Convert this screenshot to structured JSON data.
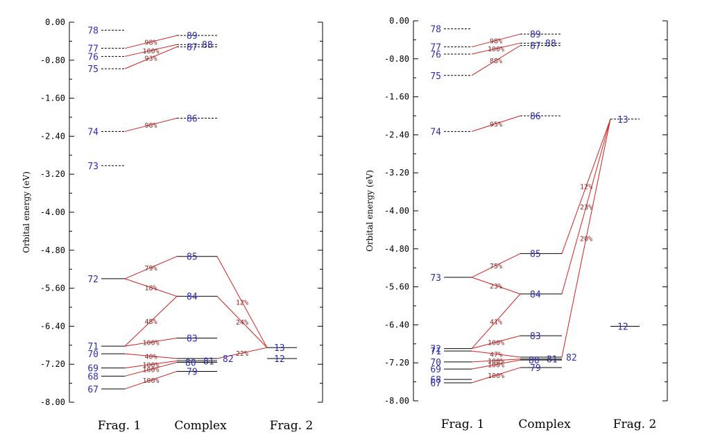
{
  "chart_data": [
    {
      "type": "orbital-correlation-diagram",
      "ylabel": "Orbital energy (eV)",
      "ylim": [
        -8.0,
        0.0
      ],
      "yticks": [
        "0.00",
        "-0.80",
        "-1.60",
        "-2.40",
        "-3.20",
        "-4.00",
        "-4.80",
        "-5.60",
        "-6.40",
        "-7.20",
        "-8.00"
      ],
      "columns": [
        "Frag. 1",
        "Complex",
        "Frag. 2"
      ],
      "levels": {
        "frag1": [
          {
            "label": "78",
            "energy": -0.17,
            "occupied": false
          },
          {
            "label": "77",
            "energy": -0.55,
            "occupied": false
          },
          {
            "label": "76",
            "energy": -0.72,
            "occupied": false
          },
          {
            "label": "75",
            "energy": -0.98,
            "occupied": false
          },
          {
            "label": "74",
            "energy": -2.3,
            "occupied": false
          },
          {
            "label": "73",
            "energy": -3.02,
            "occupied": false
          },
          {
            "label": "72",
            "energy": -5.4,
            "occupied": true
          },
          {
            "label": "71",
            "energy": -6.82,
            "occupied": true
          },
          {
            "label": "70",
            "energy": -6.98,
            "occupied": true
          },
          {
            "label": "69",
            "energy": -7.28,
            "occupied": true
          },
          {
            "label": "68",
            "energy": -7.45,
            "occupied": true
          },
          {
            "label": "67",
            "energy": -7.72,
            "occupied": true
          }
        ],
        "complex": [
          {
            "label": "89",
            "energy": -0.28,
            "occupied": false
          },
          {
            "label": "88",
            "energy": -0.47,
            "occupied": false
          },
          {
            "label": "87",
            "energy": -0.52,
            "occupied": false
          },
          {
            "label": "86",
            "energy": -2.02,
            "occupied": false
          },
          {
            "label": "85",
            "energy": -4.93,
            "occupied": true
          },
          {
            "label": "84",
            "energy": -5.77,
            "occupied": true
          },
          {
            "label": "83",
            "energy": -6.65,
            "occupied": true
          },
          {
            "label": "82",
            "energy": -7.08,
            "occupied": true
          },
          {
            "label": "81",
            "energy": -7.13,
            "occupied": true
          },
          {
            "label": "80",
            "energy": -7.16,
            "occupied": true
          },
          {
            "label": "79",
            "energy": -7.35,
            "occupied": true
          }
        ],
        "frag2": [
          {
            "label": "13",
            "energy": -6.85,
            "occupied": true
          },
          {
            "label": "12",
            "energy": -7.08,
            "occupied": true
          }
        ]
      },
      "contributions": [
        {
          "from": "77",
          "to": "89",
          "percent": "98%"
        },
        {
          "from": "76",
          "to": "88",
          "percent": "100%"
        },
        {
          "from": "75",
          "to": "87",
          "percent": "93%"
        },
        {
          "from": "74",
          "to": "86",
          "percent": "98%"
        },
        {
          "from": "72",
          "to": "85",
          "percent": "79%"
        },
        {
          "from": "72",
          "to": "84",
          "percent": "18%"
        },
        {
          "from": "71",
          "to": "84",
          "percent": "48%"
        },
        {
          "from": "71",
          "to": "83",
          "percent": "100%"
        },
        {
          "from": "70",
          "to": "82",
          "percent": "40%"
        },
        {
          "from": "69",
          "to": "81",
          "percent": "100%"
        },
        {
          "from": "68",
          "to": "80",
          "percent": "100%"
        },
        {
          "from": "67",
          "to": "79",
          "percent": "100%"
        },
        {
          "from": "13",
          "to": "85",
          "percent": "12%"
        },
        {
          "from": "13",
          "to": "84",
          "percent": "24%"
        },
        {
          "from": "13",
          "to": "82",
          "percent": "22%"
        }
      ]
    },
    {
      "type": "orbital-correlation-diagram",
      "ylabel": "Orbital energy (eV)",
      "ylim": [
        -8.0,
        0.0
      ],
      "yticks": [
        "0.00",
        "-0.80",
        "-1.60",
        "-2.40",
        "-3.20",
        "-4.00",
        "-4.80",
        "-5.60",
        "-6.40",
        "-7.20",
        "-8.00"
      ],
      "columns": [
        "Frag. 1",
        "Complex",
        "Frag. 2"
      ],
      "levels": {
        "frag1": [
          {
            "label": "78",
            "energy": -0.17,
            "occupied": false
          },
          {
            "label": "77",
            "energy": -0.55,
            "occupied": false
          },
          {
            "label": "76",
            "energy": -0.7,
            "occupied": false
          },
          {
            "label": "75",
            "energy": -1.15,
            "occupied": false
          },
          {
            "label": "74",
            "energy": -2.33,
            "occupied": false
          },
          {
            "label": "73",
            "energy": -5.4,
            "occupied": true
          },
          {
            "label": "72",
            "energy": -6.9,
            "occupied": true
          },
          {
            "label": "71",
            "energy": -6.95,
            "occupied": true
          },
          {
            "label": "70",
            "energy": -7.18,
            "occupied": true
          },
          {
            "label": "69",
            "energy": -7.33,
            "occupied": true
          },
          {
            "label": "68",
            "energy": -7.55,
            "occupied": true
          },
          {
            "label": "67",
            "energy": -7.62,
            "occupied": true
          }
        ],
        "complex": [
          {
            "label": "89",
            "energy": -0.28,
            "occupied": false
          },
          {
            "label": "88",
            "energy": -0.47,
            "occupied": false
          },
          {
            "label": "87",
            "energy": -0.52,
            "occupied": false
          },
          {
            "label": "86",
            "energy": -2.0,
            "occupied": false
          },
          {
            "label": "85",
            "energy": -4.9,
            "occupied": true
          },
          {
            "label": "84",
            "energy": -5.75,
            "occupied": true
          },
          {
            "label": "83",
            "energy": -6.63,
            "occupied": true
          },
          {
            "label": "82",
            "energy": -7.08,
            "occupied": true
          },
          {
            "label": "81",
            "energy": -7.12,
            "occupied": true
          },
          {
            "label": "80",
            "energy": -7.14,
            "occupied": true
          },
          {
            "label": "79",
            "energy": -7.3,
            "occupied": true
          }
        ],
        "frag2": [
          {
            "label": "13",
            "energy": -2.07,
            "occupied": false
          },
          {
            "label": "12",
            "energy": -6.43,
            "occupied": true
          }
        ]
      },
      "contributions": [
        {
          "from": "77",
          "to": "89",
          "percent": "98%"
        },
        {
          "from": "76",
          "to": "88",
          "percent": "100%"
        },
        {
          "from": "75",
          "to": "87",
          "percent": "88%"
        },
        {
          "from": "74",
          "to": "86",
          "percent": "95%"
        },
        {
          "from": "73",
          "to": "85",
          "percent": "75%"
        },
        {
          "from": "73",
          "to": "84",
          "percent": "23%"
        },
        {
          "from": "72",
          "to": "84",
          "percent": "41%"
        },
        {
          "from": "72",
          "to": "83",
          "percent": "100%"
        },
        {
          "from": "71",
          "to": "82",
          "percent": "47%"
        },
        {
          "from": "70",
          "to": "81",
          "percent": "100%"
        },
        {
          "from": "69",
          "to": "80",
          "percent": "100%"
        },
        {
          "from": "67",
          "to": "79",
          "percent": "100%"
        },
        {
          "from": "13",
          "to": "85",
          "percent": "12%"
        },
        {
          "from": "13",
          "to": "84",
          "percent": "23%"
        },
        {
          "from": "13",
          "to": "82",
          "percent": "20%"
        }
      ]
    }
  ]
}
